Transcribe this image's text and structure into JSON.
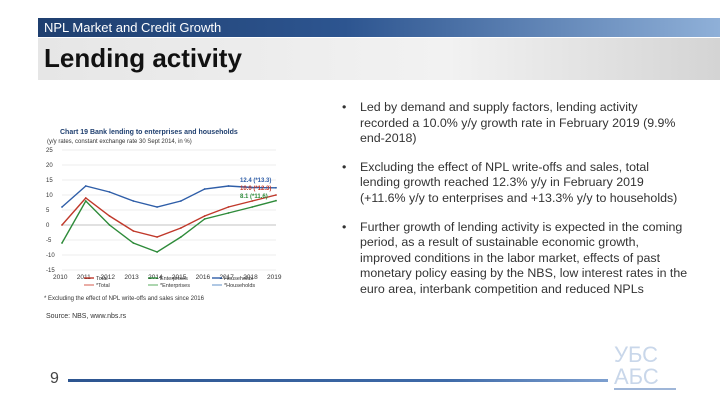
{
  "header": {
    "section": "NPL Market and Credit Growth",
    "title": "Lending activity"
  },
  "chart": {
    "title": "Chart 19 Bank lending to enterprises and households",
    "subtitle": "(y/y rates, constant exchange rate 30 Sept 2014, in %)",
    "footnote": "* Excluding the effect of NPL write-offs and sales since 2016",
    "legend": [
      "Total",
      "*Total",
      "Enterprises",
      "*Enterprises",
      "Households",
      "*Households"
    ]
  },
  "chart_data": {
    "type": "line",
    "title": "Chart 19 Bank lending to enterprises and households",
    "ylabel": "y/y rates, in %",
    "ylim": [
      -15,
      25
    ],
    "yticks": [
      "25",
      "20",
      "15",
      "10",
      "5",
      "0",
      "-5",
      "-10",
      "-15"
    ],
    "categories": [
      "2010",
      "2011",
      "2012",
      "2013",
      "2014",
      "2015",
      "2016",
      "2017",
      "2018",
      "2019"
    ],
    "series": [
      {
        "name": "Total",
        "color": "#c0392b",
        "values": [
          0,
          9,
          3,
          -2,
          -4,
          -1,
          3,
          6,
          8,
          10
        ]
      },
      {
        "name": "Enterprises",
        "color": "#2e8b3a",
        "values": [
          -6,
          8,
          0,
          -6,
          -9,
          -4,
          2,
          4,
          6,
          8.1
        ]
      },
      {
        "name": "Households",
        "color": "#2f5ea8",
        "values": [
          6,
          13,
          11,
          8,
          6,
          8,
          12,
          13,
          12.5,
          12.4
        ]
      }
    ],
    "end_labels": [
      "12.4 (*13.3)",
      "10.0 (*12.3)",
      "8.1 (*11.6)"
    ]
  },
  "source": "Source: NBS, www.nbs.rs",
  "bullets": [
    "Led by demand and supply factors, lending activity recorded a 10.0% y/y growth rate in February 2019 (9.9% end-2018)",
    "Excluding the effect of NPL write-offs and sales, total lending growth reached 12.3% y/y in February 2019 (+11.6% y/y to enterprises and +13.3% y/y to households)",
    "Further growth of lending activity is expected in the coming period, as a result of sustainable economic growth, improved conditions in the labor market, effects of past monetary policy easing by the NBS, low interest rates in the euro area, interbank competition and reduced NPLs"
  ],
  "bullet_glyph": "•",
  "page_number": "9",
  "logo": {
    "top": "УБС",
    "bottom": "АБС"
  }
}
